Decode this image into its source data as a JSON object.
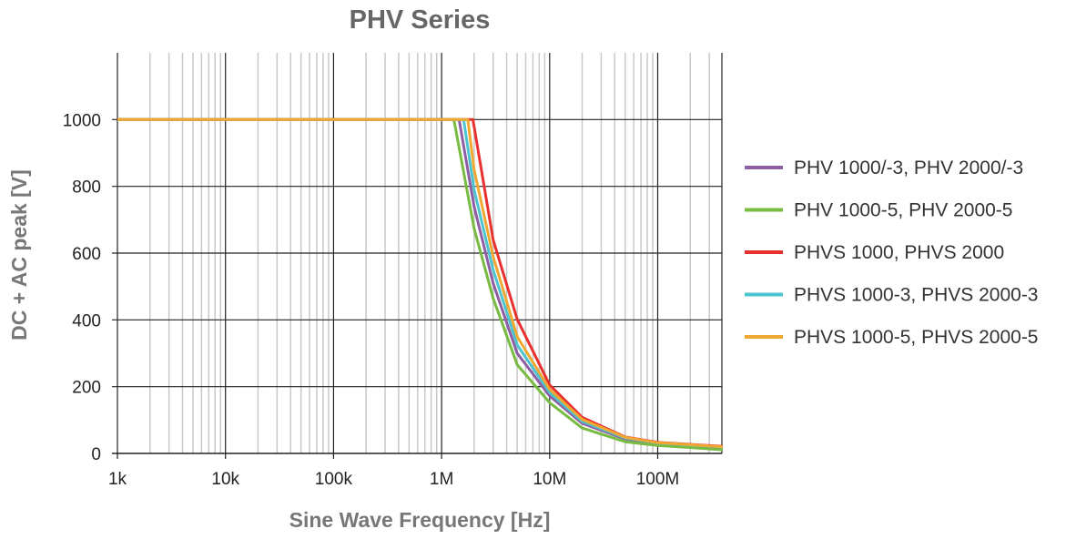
{
  "chart_data": {
    "type": "line",
    "title": "PHV Series",
    "xlabel": "Sine Wave Frequency [Hz]",
    "ylabel": "DC + AC peak [V]",
    "xscale": "log",
    "xlim": [
      1000,
      400000000
    ],
    "ylim": [
      0,
      1200
    ],
    "x_ticks": [
      1000,
      10000,
      100000,
      1000000,
      10000000,
      100000000
    ],
    "x_tick_labels": [
      "1k",
      "10k",
      "100k",
      "1M",
      "10M",
      "100M"
    ],
    "y_ticks": [
      0,
      200,
      400,
      600,
      800,
      1000
    ],
    "y_tick_labels": [
      "0",
      "200",
      "400",
      "600",
      "800",
      "1000"
    ],
    "grid": true,
    "legend_position": "right",
    "series": [
      {
        "name": "PHV 1000/-3, PHV 2000/-3",
        "color": "#8e5ea2",
        "x": [
          1000,
          1450000,
          2000000,
          3000000,
          5000000,
          10000000,
          20000000,
          50000000,
          100000000,
          400000000
        ],
        "y": [
          1000,
          1000,
          740,
          510,
          300,
          172,
          90,
          43,
          29,
          18
        ]
      },
      {
        "name": "PHV 1000-5, PHV 2000-5",
        "color": "#77bb41",
        "x": [
          1000,
          1300000,
          2000000,
          3000000,
          5000000,
          10000000,
          20000000,
          50000000,
          100000000,
          400000000
        ],
        "y": [
          1000,
          1000,
          674,
          465,
          266,
          152,
          76,
          35,
          24,
          11
        ]
      },
      {
        "name": "PHVS 1000, PHVS 2000",
        "color": "#e8312f",
        "x": [
          1000,
          1950000,
          3000000,
          5000000,
          10000000,
          20000000,
          50000000,
          100000000,
          400000000
        ],
        "y": [
          1000,
          1000,
          640,
          402,
          205,
          108,
          49,
          33,
          21
        ]
      },
      {
        "name": "PHVS 1000-3, PHVS 2000-3",
        "color": "#4bc4d0",
        "x": [
          1000,
          1600000,
          2000000,
          3000000,
          5000000,
          10000000,
          20000000,
          50000000,
          100000000,
          400000000
        ],
        "y": [
          1000,
          1000,
          790,
          550,
          325,
          182,
          96,
          46,
          31,
          19
        ]
      },
      {
        "name": "PHVS 1000-5, PHVS 2000-5",
        "color": "#f0a830",
        "x": [
          1000,
          1750000,
          2000000,
          3000000,
          5000000,
          10000000,
          20000000,
          50000000,
          100000000,
          400000000
        ],
        "y": [
          1000,
          1000,
          850,
          590,
          350,
          192,
          102,
          48,
          32,
          20
        ]
      }
    ]
  }
}
